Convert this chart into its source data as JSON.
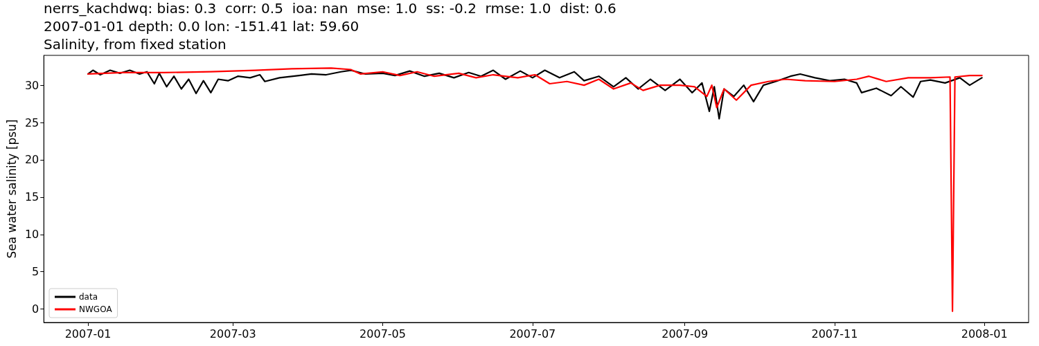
{
  "chart_data": {
    "type": "line",
    "title": "nerrs_kachdwq: bias: 0.3  corr: 0.5  ioa: nan  mse: 1.0  ss: -0.2  rmse: 1.0  dist: 0.6",
    "subtitle": "2007-01-01 depth: 0.0 lon: -151.41 lat: 59.60",
    "annotations": [
      "Salinity, from fixed station"
    ],
    "ylabel": "Sea water salinity [psu]",
    "xlim": [
      "2006-12-14",
      "2008-01-19"
    ],
    "xticks": [
      "2007-01",
      "2007-03",
      "2007-05",
      "2007-07",
      "2007-09",
      "2007-11",
      "2008-01"
    ],
    "ylim": [
      -1.8,
      34
    ],
    "yticks": [
      0,
      5,
      10,
      15,
      20,
      25,
      30
    ],
    "grid": false,
    "legend": "bottom left",
    "marker": "none",
    "line_style": "solid",
    "series": [
      {
        "name": "data",
        "color": "#000000",
        "x": [
          "2007-01-01",
          "2007-01-03",
          "2007-01-06",
          "2007-01-10",
          "2007-01-14",
          "2007-01-18",
          "2007-01-22",
          "2007-01-25",
          "2007-01-28",
          "2007-01-30",
          "2007-02-02",
          "2007-02-05",
          "2007-02-08",
          "2007-02-11",
          "2007-02-14",
          "2007-02-17",
          "2007-02-20",
          "2007-02-23",
          "2007-02-27",
          "2007-03-03",
          "2007-03-08",
          "2007-03-12",
          "2007-03-14",
          "2007-03-20",
          "2007-03-28",
          "2007-04-02",
          "2007-04-08",
          "2007-04-14",
          "2007-04-18",
          "2007-04-24",
          "2007-05-01",
          "2007-05-06",
          "2007-05-12",
          "2007-05-18",
          "2007-05-24",
          "2007-05-30",
          "2007-06-05",
          "2007-06-10",
          "2007-06-15",
          "2007-06-20",
          "2007-06-26",
          "2007-07-01",
          "2007-07-06",
          "2007-07-12",
          "2007-07-18",
          "2007-07-22",
          "2007-07-28",
          "2007-08-03",
          "2007-08-08",
          "2007-08-13",
          "2007-08-18",
          "2007-08-24",
          "2007-08-30",
          "2007-09-04",
          "2007-09-08",
          "2007-09-11",
          "2007-09-13",
          "2007-09-15",
          "2007-09-17",
          "2007-09-21",
          "2007-09-25",
          "2007-09-29",
          "2007-10-03",
          "2007-10-08",
          "2007-10-14",
          "2007-10-18",
          "2007-10-24",
          "2007-10-30",
          "2007-11-05",
          "2007-11-10",
          "2007-11-12",
          "2007-11-18",
          "2007-11-24",
          "2007-11-28",
          "2007-12-03",
          "2007-12-06",
          "2007-12-10",
          "2007-12-16",
          "2007-12-22",
          "2007-12-26",
          "2007-12-31"
        ],
        "values": [
          31.5,
          32.0,
          31.4,
          32.0,
          31.6,
          32.0,
          31.5,
          31.8,
          30.2,
          31.6,
          29.8,
          31.2,
          29.5,
          30.8,
          28.9,
          30.6,
          29.0,
          30.8,
          30.6,
          31.2,
          31.0,
          31.4,
          30.5,
          31.0,
          31.3,
          31.5,
          31.4,
          31.8,
          32.0,
          31.5,
          31.6,
          31.3,
          31.9,
          31.2,
          31.6,
          31.0,
          31.7,
          31.2,
          32.0,
          30.8,
          31.9,
          31.0,
          32.0,
          31.0,
          31.8,
          30.6,
          31.2,
          29.8,
          31.0,
          29.5,
          30.8,
          29.3,
          30.8,
          29.0,
          30.3,
          26.5,
          29.8,
          25.5,
          29.5,
          28.5,
          30.0,
          27.8,
          30.0,
          30.5,
          31.2,
          31.5,
          31.0,
          30.6,
          30.8,
          30.3,
          29.0,
          29.6,
          28.6,
          29.8,
          28.4,
          30.5,
          30.7,
          30.3,
          31.0,
          30.0,
          31.0
        ]
      },
      {
        "name": "NWGOA",
        "color": "#ff0000",
        "x": [
          "2007-01-01",
          "2007-01-15",
          "2007-02-01",
          "2007-02-20",
          "2007-03-10",
          "2007-03-25",
          "2007-04-10",
          "2007-04-18",
          "2007-04-22",
          "2007-05-01",
          "2007-05-08",
          "2007-05-15",
          "2007-05-22",
          "2007-06-01",
          "2007-06-08",
          "2007-06-15",
          "2007-06-25",
          "2007-07-02",
          "2007-07-08",
          "2007-07-15",
          "2007-07-22",
          "2007-07-28",
          "2007-08-03",
          "2007-08-10",
          "2007-08-15",
          "2007-08-22",
          "2007-08-30",
          "2007-09-05",
          "2007-09-10",
          "2007-09-12",
          "2007-09-14",
          "2007-09-17",
          "2007-09-22",
          "2007-09-28",
          "2007-10-05",
          "2007-10-12",
          "2007-10-20",
          "2007-11-01",
          "2007-11-10",
          "2007-11-15",
          "2007-11-22",
          "2007-12-01",
          "2007-12-10",
          "2007-12-18",
          "2007-12-19",
          "2007-12-20",
          "2007-12-26",
          "2007-12-31"
        ],
        "values": [
          31.5,
          31.7,
          31.7,
          31.8,
          32.0,
          32.2,
          32.3,
          32.1,
          31.5,
          31.8,
          31.3,
          31.8,
          31.2,
          31.6,
          31.0,
          31.4,
          31.0,
          31.4,
          30.2,
          30.5,
          30.0,
          30.8,
          29.5,
          30.3,
          29.3,
          30.0,
          30.0,
          29.8,
          28.5,
          30.0,
          27.0,
          29.5,
          28.0,
          30.0,
          30.5,
          30.8,
          30.6,
          30.5,
          30.8,
          31.2,
          30.5,
          31.0,
          31.0,
          31.1,
          -0.3,
          31.1,
          31.3,
          31.3
        ]
      }
    ]
  }
}
